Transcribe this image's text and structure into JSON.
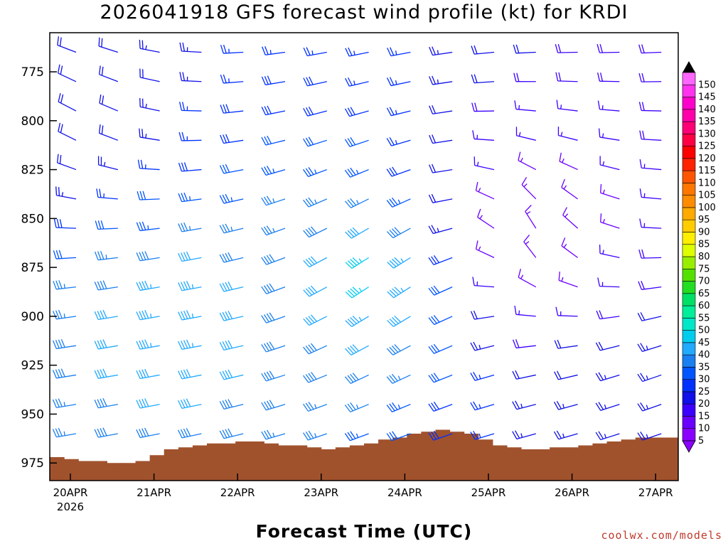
{
  "title": "2026041918 GFS forecast wind profile (kt) for KRDI",
  "xlabel": "Forecast Time (UTC)",
  "credit": "coolwx.com/models",
  "chart_data": {
    "type": "wind-barb-profile",
    "title": "2026041918 GFS forecast wind profile (kt) for KRDI",
    "xlabel": "Forecast Time (UTC)",
    "ylabel": "",
    "x_ticks": [
      "20APR",
      "21APR",
      "22APR",
      "23APR",
      "24APR",
      "25APR",
      "26APR",
      "27APR"
    ],
    "x_year_label": "2026",
    "y_ticks": [
      775,
      800,
      825,
      850,
      875,
      900,
      925,
      950,
      975
    ],
    "ylim": [
      984,
      755
    ],
    "colorbar": {
      "labels": [
        5,
        10,
        15,
        20,
        25,
        30,
        35,
        40,
        45,
        50,
        55,
        60,
        65,
        70,
        75,
        80,
        85,
        90,
        95,
        100,
        105,
        110,
        115,
        120,
        125,
        130,
        135,
        140,
        145,
        150
      ],
      "colors": [
        "#8a00ff",
        "#6a00ff",
        "#3c00ff",
        "#1010e8",
        "#0030ff",
        "#0055ff",
        "#1a7ff0",
        "#22aaff",
        "#00ccee",
        "#00e8c8",
        "#00ee99",
        "#00e066",
        "#22dd22",
        "#55e000",
        "#99ee00",
        "#ddff00",
        "#ffee00",
        "#ffcc00",
        "#ffaa00",
        "#ff8c00",
        "#ff7700",
        "#ff5500",
        "#ff2200",
        "#ff0000",
        "#ff0044",
        "#ff0077",
        "#ff00aa",
        "#ff00cc",
        "#ff33ee",
        "#ff66ff"
      ]
    },
    "terrain_color": "#a0522d",
    "surface_pressure": [
      972,
      973,
      974,
      974,
      975,
      975,
      974,
      971,
      968,
      967,
      966,
      965,
      965,
      964,
      964,
      965,
      966,
      966,
      967,
      968,
      967,
      966,
      965,
      963,
      962,
      960,
      959,
      958,
      959,
      960,
      963,
      966,
      967,
      968,
      968,
      967,
      967,
      966,
      965,
      964,
      963,
      962,
      962,
      962
    ],
    "barb_time_hours": [
      0,
      12,
      24,
      36,
      48,
      60,
      72,
      84,
      96,
      108,
      120,
      132,
      144,
      156,
      168
    ],
    "barb_levels": [
      765,
      780,
      795,
      810,
      825,
      840,
      855,
      870,
      885,
      900,
      915,
      930,
      945,
      960
    ],
    "wind_samples": [
      {
        "hour": 0,
        "level": 800,
        "dir": 300,
        "speed": 20
      },
      {
        "hour": 30,
        "level": 900,
        "dir": 260,
        "speed": 45
      },
      {
        "hour": 90,
        "level": 880,
        "dir": 235,
        "speed": 50
      },
      {
        "hour": 130,
        "level": 860,
        "dir": 340,
        "speed": 15
      },
      {
        "hour": 170,
        "level": 940,
        "dir": 250,
        "speed": 25
      }
    ]
  }
}
